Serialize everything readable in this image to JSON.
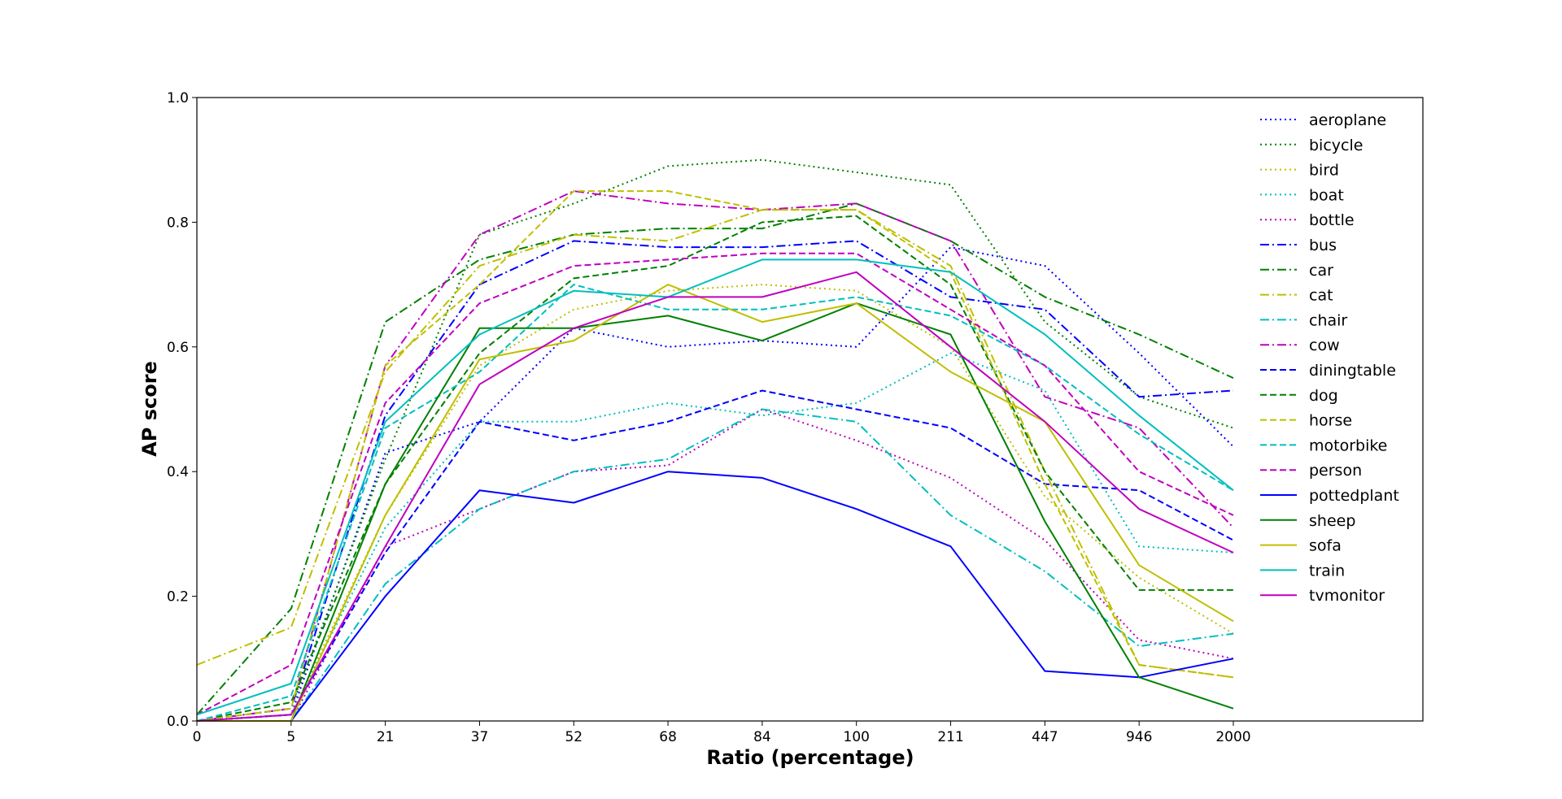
{
  "chart_data": {
    "type": "line",
    "xlabel": "Ratio (percentage)",
    "ylabel": "AP score",
    "categories": [
      "0",
      "5",
      "21",
      "37",
      "52",
      "68",
      "84",
      "100",
      "211",
      "447",
      "946",
      "2000"
    ],
    "ylim": [
      0.0,
      1.0
    ],
    "yticks": [
      "0.0",
      "0.2",
      "0.4",
      "0.6",
      "0.8",
      "1.0"
    ],
    "grid": false,
    "legend_position": "top-right",
    "series": [
      {
        "name": "aeroplane",
        "color": "#0000ff",
        "style": "dotted",
        "values": [
          0.0,
          0.01,
          0.43,
          0.48,
          0.63,
          0.6,
          0.61,
          0.6,
          0.76,
          0.73,
          0.59,
          0.44
        ]
      },
      {
        "name": "bicycle",
        "color": "#008000",
        "style": "dotted",
        "values": [
          0.0,
          0.02,
          0.42,
          0.78,
          0.83,
          0.89,
          0.9,
          0.88,
          0.86,
          0.64,
          0.52,
          0.47
        ]
      },
      {
        "name": "bird",
        "color": "#bfbf00",
        "style": "dotted",
        "values": [
          0.0,
          0.01,
          0.33,
          0.57,
          0.66,
          0.69,
          0.7,
          0.69,
          0.6,
          0.36,
          0.23,
          0.14
        ]
      },
      {
        "name": "boat",
        "color": "#00bfbf",
        "style": "dotted",
        "values": [
          0.0,
          0.01,
          0.31,
          0.48,
          0.48,
          0.51,
          0.49,
          0.51,
          0.59,
          0.53,
          0.28,
          0.27
        ]
      },
      {
        "name": "bottle",
        "color": "#bf00bf",
        "style": "dotted",
        "values": [
          0.0,
          0.0,
          0.28,
          0.34,
          0.4,
          0.41,
          0.5,
          0.45,
          0.39,
          0.29,
          0.13,
          0.1
        ]
      },
      {
        "name": "bus",
        "color": "#0000ff",
        "style": "dashdot",
        "values": [
          0.0,
          0.02,
          0.49,
          0.7,
          0.77,
          0.76,
          0.76,
          0.77,
          0.68,
          0.66,
          0.52,
          0.53
        ]
      },
      {
        "name": "car",
        "color": "#008000",
        "style": "dashdot",
        "values": [
          0.01,
          0.18,
          0.64,
          0.74,
          0.78,
          0.79,
          0.79,
          0.83,
          0.77,
          0.68,
          0.62,
          0.55
        ]
      },
      {
        "name": "cat",
        "color": "#bfbf00",
        "style": "dashdot",
        "values": [
          0.09,
          0.15,
          0.56,
          0.73,
          0.78,
          0.77,
          0.82,
          0.82,
          0.73,
          0.4,
          0.09,
          0.07
        ]
      },
      {
        "name": "chair",
        "color": "#00bfbf",
        "style": "dashdot",
        "values": [
          0.0,
          0.0,
          0.22,
          0.34,
          0.4,
          0.42,
          0.5,
          0.48,
          0.33,
          0.24,
          0.12,
          0.14
        ]
      },
      {
        "name": "cow",
        "color": "#bf00bf",
        "style": "dashdot",
        "values": [
          0.0,
          0.02,
          0.57,
          0.78,
          0.85,
          0.83,
          0.82,
          0.83,
          0.77,
          0.52,
          0.47,
          0.31
        ]
      },
      {
        "name": "diningtable",
        "color": "#0000ff",
        "style": "dashed",
        "values": [
          0.0,
          0.01,
          0.27,
          0.48,
          0.45,
          0.48,
          0.53,
          0.5,
          0.47,
          0.38,
          0.37,
          0.29
        ]
      },
      {
        "name": "dog",
        "color": "#008000",
        "style": "dashed",
        "values": [
          0.0,
          0.03,
          0.38,
          0.59,
          0.71,
          0.73,
          0.8,
          0.81,
          0.7,
          0.4,
          0.21,
          0.21
        ]
      },
      {
        "name": "horse",
        "color": "#bfbf00",
        "style": "dashed",
        "values": [
          0.0,
          0.02,
          0.57,
          0.7,
          0.85,
          0.85,
          0.82,
          0.82,
          0.72,
          0.38,
          0.09,
          0.07
        ]
      },
      {
        "name": "motorbike",
        "color": "#00bfbf",
        "style": "dashed",
        "values": [
          0.0,
          0.04,
          0.47,
          0.56,
          0.7,
          0.66,
          0.66,
          0.68,
          0.65,
          0.57,
          0.46,
          0.37
        ]
      },
      {
        "name": "person",
        "color": "#bf00bf",
        "style": "dashed",
        "values": [
          0.01,
          0.09,
          0.51,
          0.67,
          0.73,
          0.74,
          0.75,
          0.75,
          0.66,
          0.57,
          0.4,
          0.33
        ]
      },
      {
        "name": "pottedplant",
        "color": "#0000ff",
        "style": "solid",
        "values": [
          0.0,
          0.0,
          0.2,
          0.37,
          0.35,
          0.4,
          0.39,
          0.34,
          0.28,
          0.08,
          0.07,
          0.1
        ]
      },
      {
        "name": "sheep",
        "color": "#008000",
        "style": "solid",
        "values": [
          0.0,
          0.0,
          0.38,
          0.63,
          0.63,
          0.65,
          0.61,
          0.67,
          0.62,
          0.32,
          0.07,
          0.02
        ]
      },
      {
        "name": "sofa",
        "color": "#bfbf00",
        "style": "solid",
        "values": [
          0.0,
          0.0,
          0.33,
          0.58,
          0.61,
          0.7,
          0.64,
          0.67,
          0.56,
          0.48,
          0.25,
          0.16
        ]
      },
      {
        "name": "train",
        "color": "#00bfbf",
        "style": "solid",
        "values": [
          0.01,
          0.06,
          0.48,
          0.62,
          0.69,
          0.68,
          0.74,
          0.74,
          0.72,
          0.62,
          0.49,
          0.37
        ]
      },
      {
        "name": "tvmonitor",
        "color": "#bf00bf",
        "style": "solid",
        "values": [
          0.0,
          0.01,
          0.28,
          0.54,
          0.63,
          0.68,
          0.68,
          0.72,
          0.6,
          0.48,
          0.34,
          0.27
        ]
      }
    ]
  }
}
